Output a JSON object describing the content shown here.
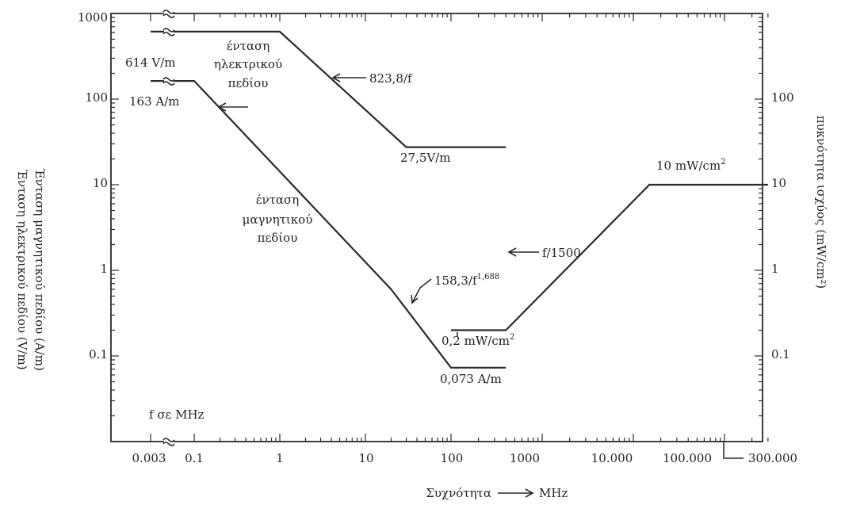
{
  "chart_data": {
    "type": "line",
    "title": "",
    "xlabel": "Συχνότητα",
    "xlabel_unit": "MHz",
    "ylabel_left": [
      "Ένταση μαγνητικού πεδίου (A/m)",
      "Ένταση ηλεκτρικού πεδίου (V/m)"
    ],
    "ylabel_right": "πυκνότητα ισχύος (mW/cm²)",
    "x_scale": "log",
    "y_scale": "log",
    "ylim": [
      0.01,
      1000
    ],
    "x_ticks": [
      "0.003",
      "0.1",
      "1",
      "10",
      "100",
      "1000",
      "10.000",
      "100.000",
      "300.000"
    ],
    "y_ticks_left": [
      "0.1",
      "1",
      "10",
      "100",
      "1000"
    ],
    "y_ticks_right": [
      "0.1",
      "1",
      "10",
      "100"
    ],
    "grid": false,
    "series": [
      {
        "key": "electric",
        "points": [
          [
            0.003,
            614
          ],
          [
            1,
            614
          ],
          [
            30,
            27.5
          ],
          [
            400,
            27.5
          ]
        ]
      },
      {
        "key": "magnetic",
        "points": [
          [
            0.003,
            163
          ],
          [
            0.1,
            163
          ],
          [
            20,
            0.6
          ],
          [
            100,
            0.073
          ],
          [
            400,
            0.073
          ]
        ]
      },
      {
        "key": "power",
        "points": [
          [
            100,
            0.2
          ],
          [
            400,
            0.2
          ],
          [
            15000,
            10
          ],
          [
            300000,
            10
          ]
        ]
      }
    ],
    "annotations": {
      "e_value": "614 V/m",
      "e_name": [
        "ένταση",
        "ηλεκτρικού",
        "πεδίου"
      ],
      "e_slope": "823,8/f",
      "e_end": "27,5V/m",
      "h_value": "163 A/m",
      "h_name": [
        "ένταση",
        "μαγνητικού",
        "πεδίου"
      ],
      "h_slope_base": "158,3/f",
      "h_slope_exp": "1,688",
      "h_end": "0,073 A/m",
      "p_low_base": "0,2 mW/cm",
      "p_high_base": "10 mW/cm",
      "p_sup": "2",
      "p_slope": "f/1500",
      "freq_note": "f σε MHz"
    }
  }
}
